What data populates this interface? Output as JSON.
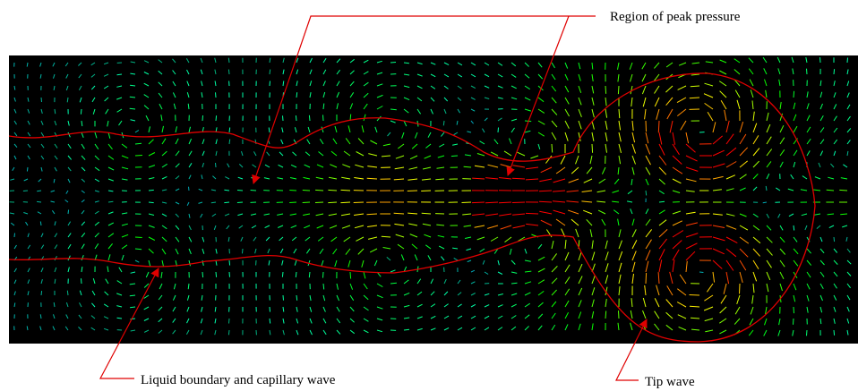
{
  "annotations": {
    "peak_pressure": "Region of peak pressure",
    "boundary": "Liquid boundary and capillary wave",
    "tip": "Tip wave"
  }
}
